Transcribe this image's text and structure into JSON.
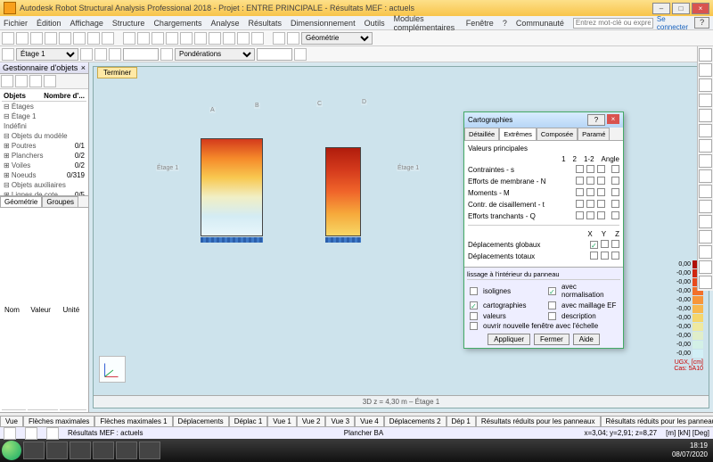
{
  "window": {
    "title": "Autodesk Robot Structural Analysis Professional 2018 - Projet : ENTRE PRINCIPALE - Résultats MEF : actuels",
    "search_placeholder": "Entrez mot-clé ou expression",
    "login": "Se connecter"
  },
  "menubar": [
    "Fichier",
    "Édition",
    "Affichage",
    "Structure",
    "Chargements",
    "Analyse",
    "Résultats",
    "Dimensionnement",
    "Outils",
    "Modules complémentaires",
    "Fenêtre",
    "?",
    "Communauté"
  ],
  "toolbar2": {
    "stage_select": "Étage 1",
    "combo": "Pondérations",
    "geom": "Géométrie"
  },
  "obj_panel": {
    "title": "Gestionnaire d'objets",
    "cols": [
      "Objets",
      "Nombre d'..."
    ],
    "rows": [
      {
        "l": "⊟ Étages",
        "v": ""
      },
      {
        "l": "  ⊟ Étage 1",
        "v": ""
      },
      {
        "l": "     Indéfini",
        "v": ""
      },
      {
        "l": "⊟ Objets du modèle",
        "v": ""
      },
      {
        "l": "  ⊞ Poutres",
        "v": "0/1"
      },
      {
        "l": "  ⊞ Planchers",
        "v": "0/2"
      },
      {
        "l": "  ⊞ Voiles",
        "v": "0/2"
      },
      {
        "l": "  ⊞ Noeuds",
        "v": "0/319"
      },
      {
        "l": "⊟ Objets auxiliaires",
        "v": ""
      },
      {
        "l": "  ⊞ Lignes de cote",
        "v": "0/5"
      }
    ],
    "tabs": [
      "Géométrie",
      "Groupes"
    ],
    "prop_cols": [
      "Nom",
      "Valeur",
      "Unité"
    ]
  },
  "viewport": {
    "tab": "Terminer",
    "grid_labels": [
      "A",
      "B",
      "C",
      "D",
      "1",
      "2"
    ],
    "stage_labels": [
      "Étage 1",
      "Étage 1"
    ],
    "status": "3D     z = 4,30 m – Étage 1"
  },
  "legend": {
    "values": [
      "0,00",
      "-0,00",
      "-0,00",
      "-0,00",
      "-0,00",
      "-0,00",
      "-0,00",
      "-0,00",
      "-0,00",
      "-0,00",
      "-0,00"
    ],
    "colors": [
      "#b01008",
      "#d0260f",
      "#e84a1c",
      "#f2702a",
      "#f7963a",
      "#f8b84e",
      "#f5d66b",
      "#eee9a0",
      "#e0eeca",
      "#d3f0e6",
      "#d2eff6"
    ],
    "caption1": "UGX, [cm]",
    "caption2": "Cas: 5A10"
  },
  "dlg": {
    "title": "Cartographies",
    "tabs": [
      "Détaillée",
      "Extrêmes",
      "Composée",
      "Paramé"
    ],
    "active_tab": 1,
    "subtitle": "Valeurs principales",
    "col_heads": [
      "1",
      "2",
      "1-2",
      "Angle"
    ],
    "rows": [
      {
        "l": "Contraintes - s"
      },
      {
        "l": "Efforts de membrane - N"
      },
      {
        "l": "Moments - M"
      },
      {
        "l": "Contr. de cisaillement - t"
      },
      {
        "l": "Efforts tranchants - Q"
      }
    ],
    "sec2_heads": [
      "X",
      "Y",
      "Z"
    ],
    "sec2_rows": [
      {
        "l": "Déplacements globaux",
        "checked": 0
      },
      {
        "l": "Déplacements totaux"
      }
    ],
    "bottom_title": "lissage à l'intérieur du panneau",
    "radios": [
      {
        "l": "isolignes"
      },
      {
        "l": "avec normalisation",
        "ck": true
      },
      {
        "l": "cartographies",
        "sel": true
      },
      {
        "l": "avec maillage EF"
      },
      {
        "l": "valeurs"
      },
      {
        "l": "description"
      }
    ],
    "open_new": "ouvrir nouvelle fenêtre avec l'échelle",
    "btns": [
      "Appliquer",
      "Fermer",
      "Aide"
    ]
  },
  "tabs_bottom": [
    "Vue",
    "Flèches maximales",
    "Flèches maximales 1",
    "Déplacements",
    "Déplac 1",
    "Vue 1",
    "Vue 2",
    "Vue 3",
    "Vue 4",
    "Déplacements 2",
    "Dép 1",
    "Résultats réduits pour les panneaux",
    "Résultats réduits pour les panneaux 1",
    "Résultats réduits pour les panneaux 2",
    "Vue 5"
  ],
  "status2": {
    "left": "Résultats MEF : actuels",
    "mid": "Plancher BA",
    "coords": "x=3,04; y=2,91; z=8,27",
    "units": "[m] [kN] [Deg]"
  },
  "taskbar": {
    "time": "18:19",
    "date": "08/07/2020"
  }
}
